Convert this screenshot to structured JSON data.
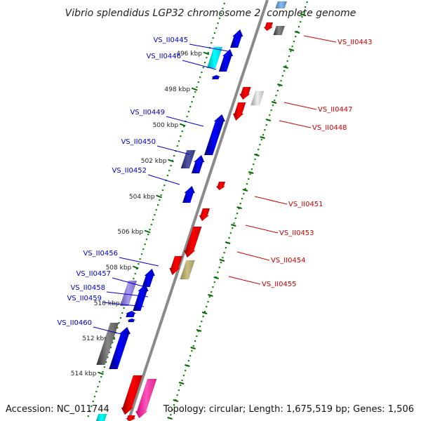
{
  "title": "Vibrio splendidus LGP32 chromosome 2, complete genome",
  "footer": {
    "accession": "Accession: NC_011744",
    "summary": "Topology: circular; Length: 1,675,519 bp; Genes: 1,506"
  },
  "colors": {
    "backbone": "#808080",
    "tick_major": "#008800",
    "tick_minor": "#006600",
    "forward_label": "#0000cc",
    "reverse_label": "#cc0000"
  },
  "scale": {
    "ticks": [
      "496 kbp",
      "498 kbp",
      "500 kbp",
      "502 kbp",
      "504 kbp",
      "506 kbp",
      "508 kbp",
      "510 kbp",
      "512 kbp",
      "514 kbp"
    ]
  },
  "labels": {
    "forward": [
      "VS_II0445",
      "VS_II0446",
      "VS_II0449",
      "VS_II0450",
      "VS_II0452",
      "VS_II0456",
      "VS_II0457",
      "VS_II0458",
      "VS_II0459",
      "VS_II0460"
    ],
    "reverse": [
      "VS_II0443",
      "VS_II0447",
      "VS_II0448",
      "VS_II0451",
      "VS_II0453",
      "VS_II0454",
      "VS_II0455"
    ]
  }
}
